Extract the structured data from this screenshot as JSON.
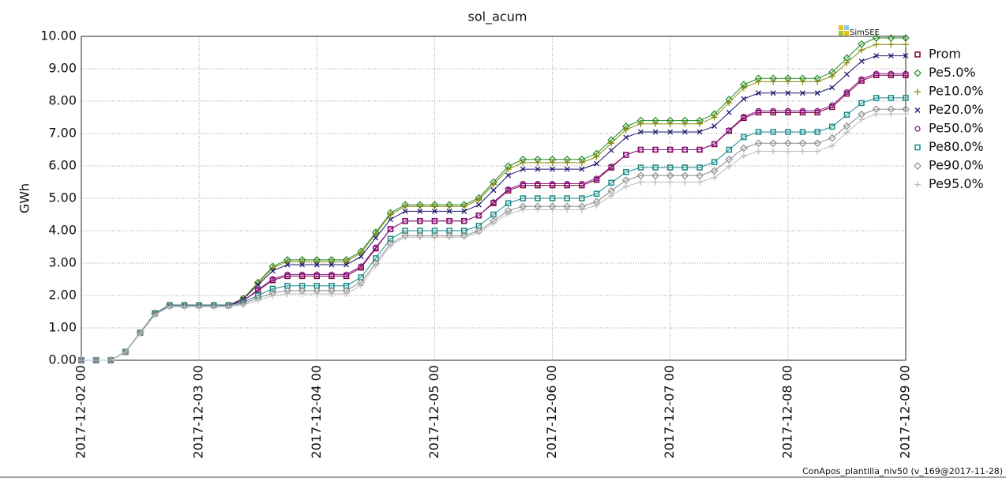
{
  "chart_data": {
    "type": "line",
    "title": "sol_acum",
    "ylabel": "GWh",
    "logo": "SimSEE",
    "footer": "ConApos_plantilla_niv50 (v_169@2017-11-28)",
    "grid": true,
    "legend": "right",
    "x": [
      "2017-12-02 00",
      "2017-12-02 03",
      "2017-12-02 06",
      "2017-12-02 09",
      "2017-12-02 12",
      "2017-12-02 15",
      "2017-12-02 18",
      "2017-12-02 21",
      "2017-12-03 00",
      "2017-12-03 03",
      "2017-12-03 06",
      "2017-12-03 09",
      "2017-12-03 12",
      "2017-12-03 15",
      "2017-12-03 18",
      "2017-12-03 21",
      "2017-12-04 00",
      "2017-12-04 03",
      "2017-12-04 06",
      "2017-12-04 09",
      "2017-12-04 12",
      "2017-12-04 15",
      "2017-12-04 18",
      "2017-12-04 21",
      "2017-12-05 00",
      "2017-12-05 03",
      "2017-12-05 06",
      "2017-12-05 09",
      "2017-12-05 12",
      "2017-12-05 15",
      "2017-12-05 18",
      "2017-12-05 21",
      "2017-12-06 00",
      "2017-12-06 03",
      "2017-12-06 06",
      "2017-12-06 09",
      "2017-12-06 12",
      "2017-12-06 15",
      "2017-12-06 18",
      "2017-12-06 21",
      "2017-12-07 00",
      "2017-12-07 03",
      "2017-12-07 06",
      "2017-12-07 09",
      "2017-12-07 12",
      "2017-12-07 15",
      "2017-12-07 18",
      "2017-12-07 21",
      "2017-12-08 00",
      "2017-12-08 03",
      "2017-12-08 06",
      "2017-12-08 09",
      "2017-12-08 12",
      "2017-12-08 15",
      "2017-12-08 18",
      "2017-12-08 21",
      "2017-12-09 00"
    ],
    "xlim": [
      "2017-12-02 00",
      "2017-12-09 00"
    ],
    "xticks": [
      "2017-12-02 00",
      "2017-12-03 00",
      "2017-12-04 00",
      "2017-12-05 00",
      "2017-12-06 00",
      "2017-12-07 00",
      "2017-12-08 00",
      "2017-12-09 00"
    ],
    "ylim": [
      0,
      10
    ],
    "yticks": [
      {
        "value": 0,
        "label": "0.00"
      },
      {
        "value": 1,
        "label": "1.00"
      },
      {
        "value": 2,
        "label": "2.00"
      },
      {
        "value": 3,
        "label": "3.00"
      },
      {
        "value": 4,
        "label": "4.00"
      },
      {
        "value": 5,
        "label": "5.00"
      },
      {
        "value": 6,
        "label": "6.00"
      },
      {
        "value": 7,
        "label": "7.00"
      },
      {
        "value": 8,
        "label": "8.00"
      },
      {
        "value": 9,
        "label": "9.00"
      },
      {
        "value": 10,
        "label": "10.00"
      }
    ],
    "series": [
      {
        "name": "Prom",
        "color": "#800040",
        "marker": "square",
        "values": [
          0,
          0,
          0,
          0.26,
          0.85,
          1.45,
          1.7,
          1.7,
          1.7,
          1.7,
          1.7,
          1.84,
          2.15,
          2.47,
          2.6,
          2.6,
          2.6,
          2.6,
          2.6,
          2.86,
          3.45,
          4.05,
          4.3,
          4.3,
          4.3,
          4.3,
          4.3,
          4.47,
          4.85,
          5.24,
          5.4,
          5.4,
          5.4,
          5.4,
          5.4,
          5.57,
          5.95,
          6.34,
          6.5,
          6.5,
          6.5,
          6.5,
          6.5,
          6.67,
          7.08,
          7.48,
          7.65,
          7.65,
          7.65,
          7.65,
          7.65,
          7.82,
          8.23,
          8.63,
          8.8,
          8.8,
          8.8
        ]
      },
      {
        "name": "Pe5.0%",
        "color": "#228b22",
        "marker": "diamond",
        "values": [
          0,
          0,
          0,
          0.26,
          0.85,
          1.45,
          1.7,
          1.7,
          1.7,
          1.7,
          1.7,
          1.91,
          2.4,
          2.89,
          3.1,
          3.1,
          3.1,
          3.1,
          3.1,
          3.36,
          3.95,
          4.55,
          4.8,
          4.8,
          4.8,
          4.8,
          4.8,
          5.01,
          5.5,
          5.99,
          6.2,
          6.2,
          6.2,
          6.2,
          6.2,
          6.38,
          6.8,
          7.22,
          7.4,
          7.4,
          7.4,
          7.4,
          7.4,
          7.6,
          8.05,
          8.51,
          8.7,
          8.7,
          8.7,
          8.7,
          8.7,
          8.89,
          9.33,
          9.76,
          9.95,
          9.95,
          9.95
        ]
      },
      {
        "name": "Pe10.0%",
        "color": "#8a8a10",
        "marker": "plus",
        "values": [
          0,
          0,
          0,
          0.26,
          0.85,
          1.45,
          1.7,
          1.7,
          1.7,
          1.7,
          1.7,
          1.9,
          2.38,
          2.85,
          3.05,
          3.05,
          3.05,
          3.05,
          3.05,
          3.31,
          3.9,
          4.5,
          4.75,
          4.75,
          4.75,
          4.75,
          4.75,
          4.95,
          5.43,
          5.9,
          6.1,
          6.1,
          6.1,
          6.1,
          6.1,
          6.28,
          6.7,
          7.12,
          7.3,
          7.3,
          7.3,
          7.3,
          7.3,
          7.5,
          7.95,
          8.41,
          8.6,
          8.6,
          8.6,
          8.6,
          8.6,
          8.77,
          9.18,
          9.58,
          9.75,
          9.75,
          9.75
        ]
      },
      {
        "name": "Pe20.0%",
        "color": "#1a1a6e",
        "marker": "cross",
        "values": [
          0,
          0,
          0,
          0.26,
          0.85,
          1.45,
          1.7,
          1.7,
          1.7,
          1.7,
          1.7,
          1.89,
          2.33,
          2.76,
          2.95,
          2.95,
          2.95,
          2.95,
          2.95,
          3.2,
          3.78,
          4.35,
          4.6,
          4.6,
          4.6,
          4.6,
          4.6,
          4.8,
          5.25,
          5.71,
          5.9,
          5.9,
          5.9,
          5.9,
          5.9,
          6.07,
          6.48,
          6.88,
          7.05,
          7.05,
          7.05,
          7.05,
          7.05,
          7.23,
          7.65,
          8.07,
          8.25,
          8.25,
          8.25,
          8.25,
          8.25,
          8.42,
          8.83,
          9.23,
          9.4,
          9.4,
          9.4
        ]
      },
      {
        "name": "Pe50.0%",
        "color": "#8b1a8b",
        "marker": "circle",
        "values": [
          0,
          0,
          0,
          0.26,
          0.85,
          1.45,
          1.7,
          1.7,
          1.7,
          1.7,
          1.7,
          1.84,
          2.18,
          2.51,
          2.65,
          2.65,
          2.65,
          2.65,
          2.65,
          2.9,
          3.48,
          4.05,
          4.3,
          4.3,
          4.3,
          4.3,
          4.3,
          4.47,
          4.88,
          5.28,
          5.45,
          5.45,
          5.45,
          5.45,
          5.45,
          5.61,
          5.98,
          6.34,
          6.5,
          6.5,
          6.5,
          6.5,
          6.5,
          6.68,
          7.1,
          7.52,
          7.7,
          7.7,
          7.7,
          7.7,
          7.7,
          7.87,
          8.28,
          8.68,
          8.85,
          8.85,
          8.85
        ]
      },
      {
        "name": "Pe80.0%",
        "color": "#1a8a8a",
        "marker": "square",
        "values": [
          0,
          0,
          0,
          0.26,
          0.85,
          1.45,
          1.7,
          1.7,
          1.7,
          1.7,
          1.7,
          1.79,
          2.0,
          2.21,
          2.3,
          2.3,
          2.3,
          2.3,
          2.3,
          2.56,
          3.15,
          3.75,
          4.0,
          4.0,
          4,
          4,
          4,
          4.15,
          4.5,
          4.85,
          5,
          5,
          5,
          5,
          5,
          5.14,
          5.48,
          5.81,
          5.95,
          5.95,
          5.95,
          5.95,
          5.95,
          6.12,
          6.5,
          6.89,
          7.05,
          7.05,
          7.05,
          7.05,
          7.05,
          7.21,
          7.58,
          7.94,
          8.1,
          8.1,
          8.1
        ]
      },
      {
        "name": "Pe90.0%",
        "color": "#8c8c8c",
        "marker": "diamond",
        "values": [
          0,
          0,
          0,
          0.25,
          0.84,
          1.43,
          1.68,
          1.68,
          1.68,
          1.68,
          1.68,
          1.75,
          1.92,
          2.08,
          2.15,
          2.15,
          2.15,
          2.15,
          2.15,
          2.41,
          3.0,
          3.6,
          3.85,
          3.85,
          3.85,
          3.85,
          3.85,
          3.99,
          4.3,
          4.62,
          4.75,
          4.75,
          4.75,
          4.75,
          4.75,
          4.89,
          5.23,
          5.56,
          5.7,
          5.7,
          5.7,
          5.7,
          5.7,
          5.85,
          6.2,
          6.55,
          6.7,
          6.7,
          6.7,
          6.7,
          6.7,
          6.86,
          7.23,
          7.59,
          7.75,
          7.75,
          7.75
        ]
      },
      {
        "name": "Pe95.0%",
        "color": "#bdbdbd",
        "marker": "plus",
        "values": [
          0,
          0,
          0,
          0.25,
          0.83,
          1.4,
          1.65,
          1.65,
          1.65,
          1.65,
          1.65,
          1.71,
          1.85,
          1.99,
          2.05,
          2.05,
          2.05,
          2.05,
          2.05,
          2.31,
          2.93,
          3.54,
          3.8,
          3.8,
          3.8,
          3.8,
          3.8,
          3.93,
          4.23,
          4.52,
          4.65,
          4.65,
          4.65,
          4.65,
          4.65,
          4.78,
          5.08,
          5.37,
          5.5,
          5.5,
          5.5,
          5.5,
          5.5,
          5.64,
          5.98,
          6.31,
          6.45,
          6.45,
          6.45,
          6.45,
          6.45,
          6.62,
          7.03,
          7.43,
          7.6,
          7.6,
          7.6
        ]
      }
    ]
  }
}
